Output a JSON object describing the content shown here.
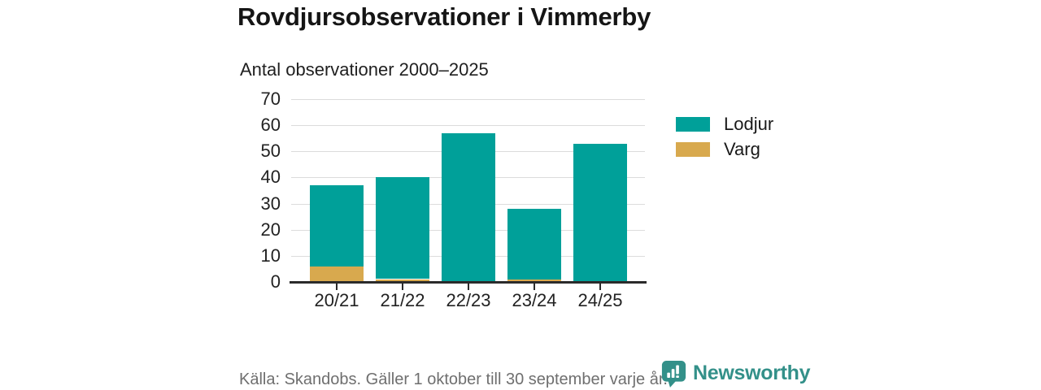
{
  "header": {
    "title": "Rovdjursobservationer i Vimmerby",
    "subtitle": "Antal observationer 2000–2025"
  },
  "chart_data": {
    "type": "bar",
    "stacked": true,
    "title": "Rovdjursobservationer i Vimmerby",
    "subtitle": "Antal observationer 2000–2025",
    "categories": [
      "20/21",
      "21/22",
      "22/23",
      "23/24",
      "24/25"
    ],
    "series": [
      {
        "name": "Lodjur",
        "color": "#00a099",
        "values": [
          31,
          39,
          57,
          27,
          53
        ]
      },
      {
        "name": "Varg",
        "color": "#d8a94e",
        "values": [
          6,
          1,
          0,
          1,
          0
        ]
      }
    ],
    "stack_order": [
      "Varg",
      "Lodjur"
    ],
    "totals": [
      37,
      40,
      57,
      28,
      53
    ],
    "ylim": [
      0,
      70
    ],
    "yticks": [
      0,
      10,
      20,
      30,
      40,
      50,
      60,
      70
    ],
    "xlabel": "",
    "ylabel": "",
    "grid": true,
    "legend_position": "right"
  },
  "footer": {
    "source": "Källa: Skandobs. Gäller 1 oktober till 30 september varje år.",
    "brand": "Newsworthy",
    "brand_color": "#339089"
  }
}
